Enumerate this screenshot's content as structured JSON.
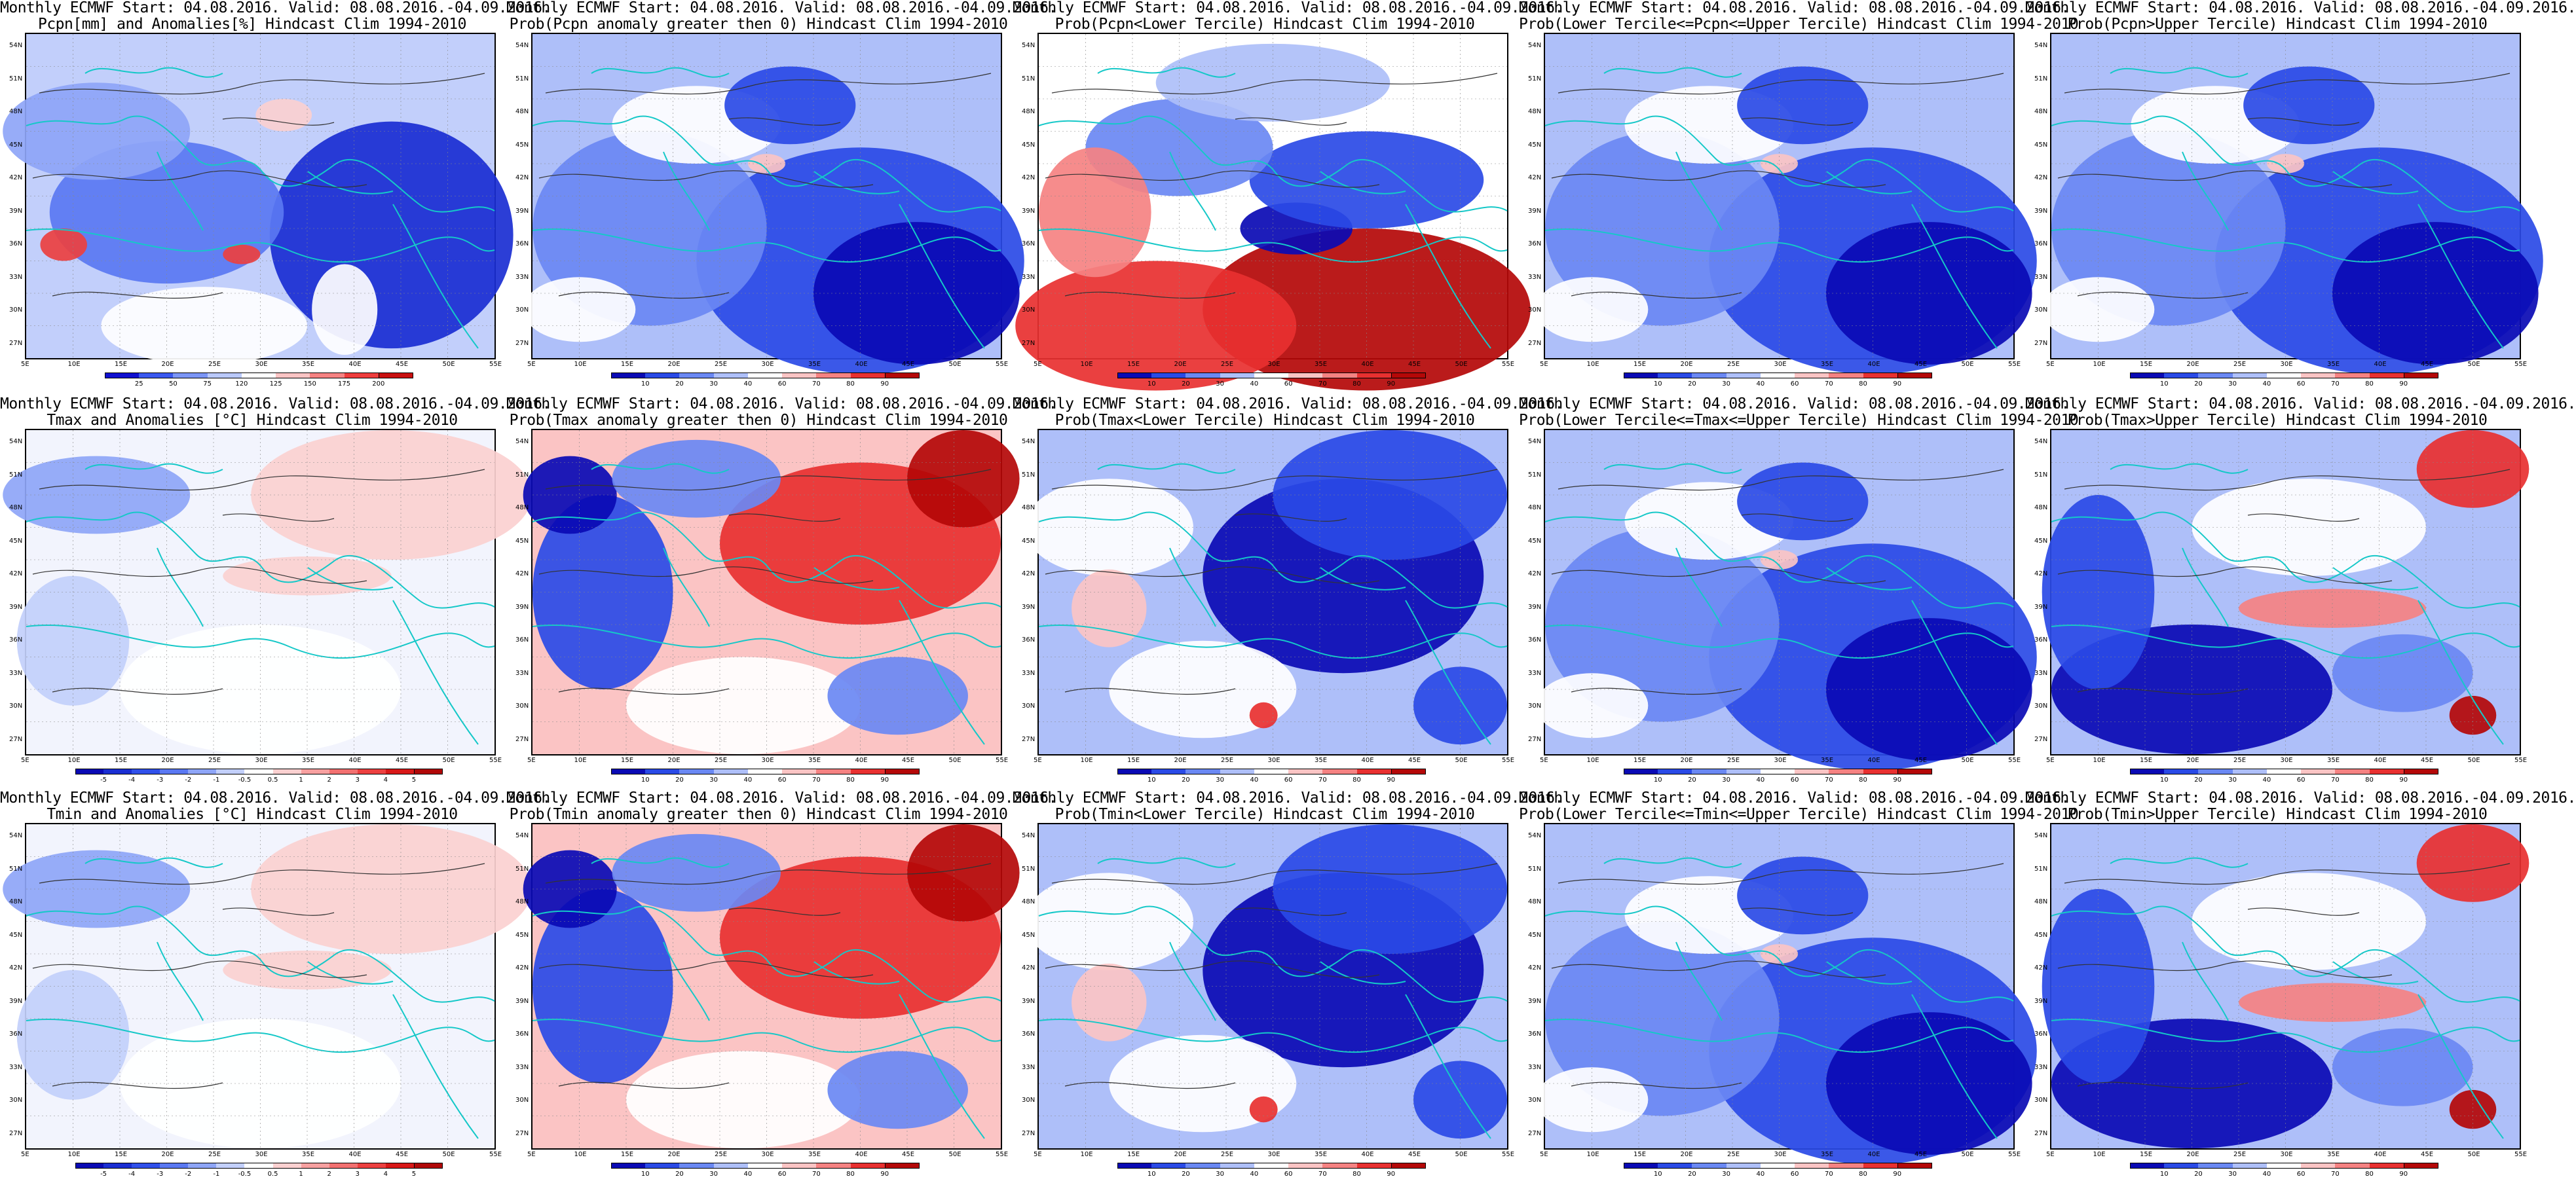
{
  "latitude_labels": [
    "54N",
    "51N",
    "48N",
    "45N",
    "42N",
    "39N",
    "36N",
    "33N",
    "30N",
    "27N"
  ],
  "longitude_labels": [
    "5E",
    "10E",
    "15E",
    "20E",
    "25E",
    "30E",
    "35E",
    "40E",
    "45E",
    "50E",
    "55E"
  ],
  "colorbars": {
    "precip_anomaly": {
      "labels": [
        "25",
        "50",
        "75",
        "120",
        "125",
        "150",
        "175",
        "200"
      ],
      "colors": [
        "#1010d0",
        "#3a58ef",
        "#7b95f5",
        "#bac9fb",
        "#ffffff",
        "#fbc4c4",
        "#f58282",
        "#ee3c3c",
        "#c81010"
      ]
    },
    "temp_anomaly": {
      "labels": [
        "-5",
        "-4",
        "-3",
        "-2",
        "-1",
        "-0.5",
        "0.5",
        "1",
        "2",
        "3",
        "4",
        "5"
      ],
      "colors": [
        "#0a0ab4",
        "#1a2ed2",
        "#3050ea",
        "#5a78f2",
        "#8ea5f7",
        "#c2cffb",
        "#ffffff",
        "#fbd0d0",
        "#f7a0a0",
        "#f27070",
        "#ec4040",
        "#d81818",
        "#b00808"
      ]
    },
    "probability": {
      "labels": [
        "10",
        "20",
        "30",
        "40",
        "60",
        "70",
        "80",
        "90"
      ],
      "colors": [
        "#0a0ab4",
        "#2a4ae6",
        "#6a88f3",
        "#aebff9",
        "#ffffff",
        "#fbc4c4",
        "#f58282",
        "#e83030",
        "#b40808"
      ]
    }
  },
  "panels": [
    {
      "line1": "Monthly ECMWF Start: 04.08.2016. Valid: 08.08.2016.-04.09.2016.",
      "line2": "Pcpn[mm] and Anomalies[%] Hindcast Clim 1994-2010",
      "colorbar": "precip_anomaly",
      "theme": "precip"
    },
    {
      "line1": "Monthly ECMWF Start: 04.08.2016. Valid: 08.08.2016.-04.09.2016.",
      "line2": "Prob(Pcpn anomaly greater then 0) Hindcast Clim 1994-2010",
      "colorbar": "probability",
      "theme": "blue"
    },
    {
      "line1": "Monthly ECMWF Start: 04.08.2016. Valid: 08.08.2016.-04.09.2016.",
      "line2": "Prob(Pcpn<Lower Tercile) Hindcast Clim 1994-2010",
      "colorbar": "probability",
      "theme": "redsouth"
    },
    {
      "line1": "Monthly ECMWF Start: 04.08.2016. Valid: 08.08.2016.-04.09.2016.",
      "line2": "Prob(Lower Tercile<=Pcpn<=Upper Tercile) Hindcast Clim 1994-2010",
      "colorbar": "probability",
      "theme": "blue"
    },
    {
      "line1": "Monthly ECMWF Start: 04.08.2016. Valid: 08.08.2016.-04.09.2016.",
      "line2": "Prob(Pcpn>Upper Tercile) Hindcast Clim 1994-2010",
      "colorbar": "probability",
      "theme": "blue"
    },
    {
      "line1": "Monthly ECMWF Start: 04.08.2016. Valid: 08.08.2016.-04.09.2016.",
      "line2": "Tmax and Anomalies [°C] Hindcast Clim 1994-2010",
      "colorbar": "temp_anomaly",
      "theme": "pale"
    },
    {
      "line1": "Monthly ECMWF Start: 04.08.2016. Valid: 08.08.2016.-04.09.2016.",
      "line2": "Prob(Tmax anomaly greater then 0) Hindcast Clim 1994-2010",
      "colorbar": "probability",
      "theme": "redeast"
    },
    {
      "line1": "Monthly ECMWF Start: 04.08.2016. Valid: 08.08.2016.-04.09.2016.",
      "line2": "Prob(Tmax<Lower Tercile) Hindcast Clim 1994-2010",
      "colorbar": "probability",
      "theme": "blueeast"
    },
    {
      "line1": "Monthly ECMWF Start: 04.08.2016. Valid: 08.08.2016.-04.09.2016.",
      "line2": "Prob(Lower Tercile<=Tmax<=Upper Tercile) Hindcast Clim 1994-2010",
      "colorbar": "probability",
      "theme": "blue"
    },
    {
      "line1": "Monthly ECMWF Start: 04.08.2016. Valid: 08.08.2016.-04.09.2016.",
      "line2": "Prob(Tmax>Upper Tercile) Hindcast Clim 1994-2010",
      "colorbar": "probability",
      "theme": "mixed"
    },
    {
      "line1": "Monthly ECMWF Start: 04.08.2016. Valid: 08.08.2016.-04.09.2016.",
      "line2": "Tmin and Anomalies [°C] Hindcast Clim 1994-2010",
      "colorbar": "temp_anomaly",
      "theme": "pale"
    },
    {
      "line1": "Monthly ECMWF Start: 04.08.2016. Valid: 08.08.2016.-04.09.2016.",
      "line2": "Prob(Tmin anomaly greater then 0) Hindcast Clim 1994-2010",
      "colorbar": "probability",
      "theme": "redeast"
    },
    {
      "line1": "Monthly ECMWF Start: 04.08.2016. Valid: 08.08.2016.-04.09.2016.",
      "line2": "Prob(Tmin<Lower Tercile) Hindcast Clim 1994-2010",
      "colorbar": "probability",
      "theme": "blueeast"
    },
    {
      "line1": "Monthly ECMWF Start: 04.08.2016. Valid: 08.08.2016.-04.09.2016.",
      "line2": "Prob(Lower Tercile<=Tmin<=Upper Tercile) Hindcast Clim 1994-2010",
      "colorbar": "probability",
      "theme": "blue"
    },
    {
      "line1": "Monthly ECMWF Start: 04.08.2016. Valid: 08.08.2016.-04.09.2016.",
      "line2": "Prob(Tmin>Upper Tercile) Hindcast Clim 1994-2010",
      "colorbar": "probability",
      "theme": "mixed"
    }
  ]
}
